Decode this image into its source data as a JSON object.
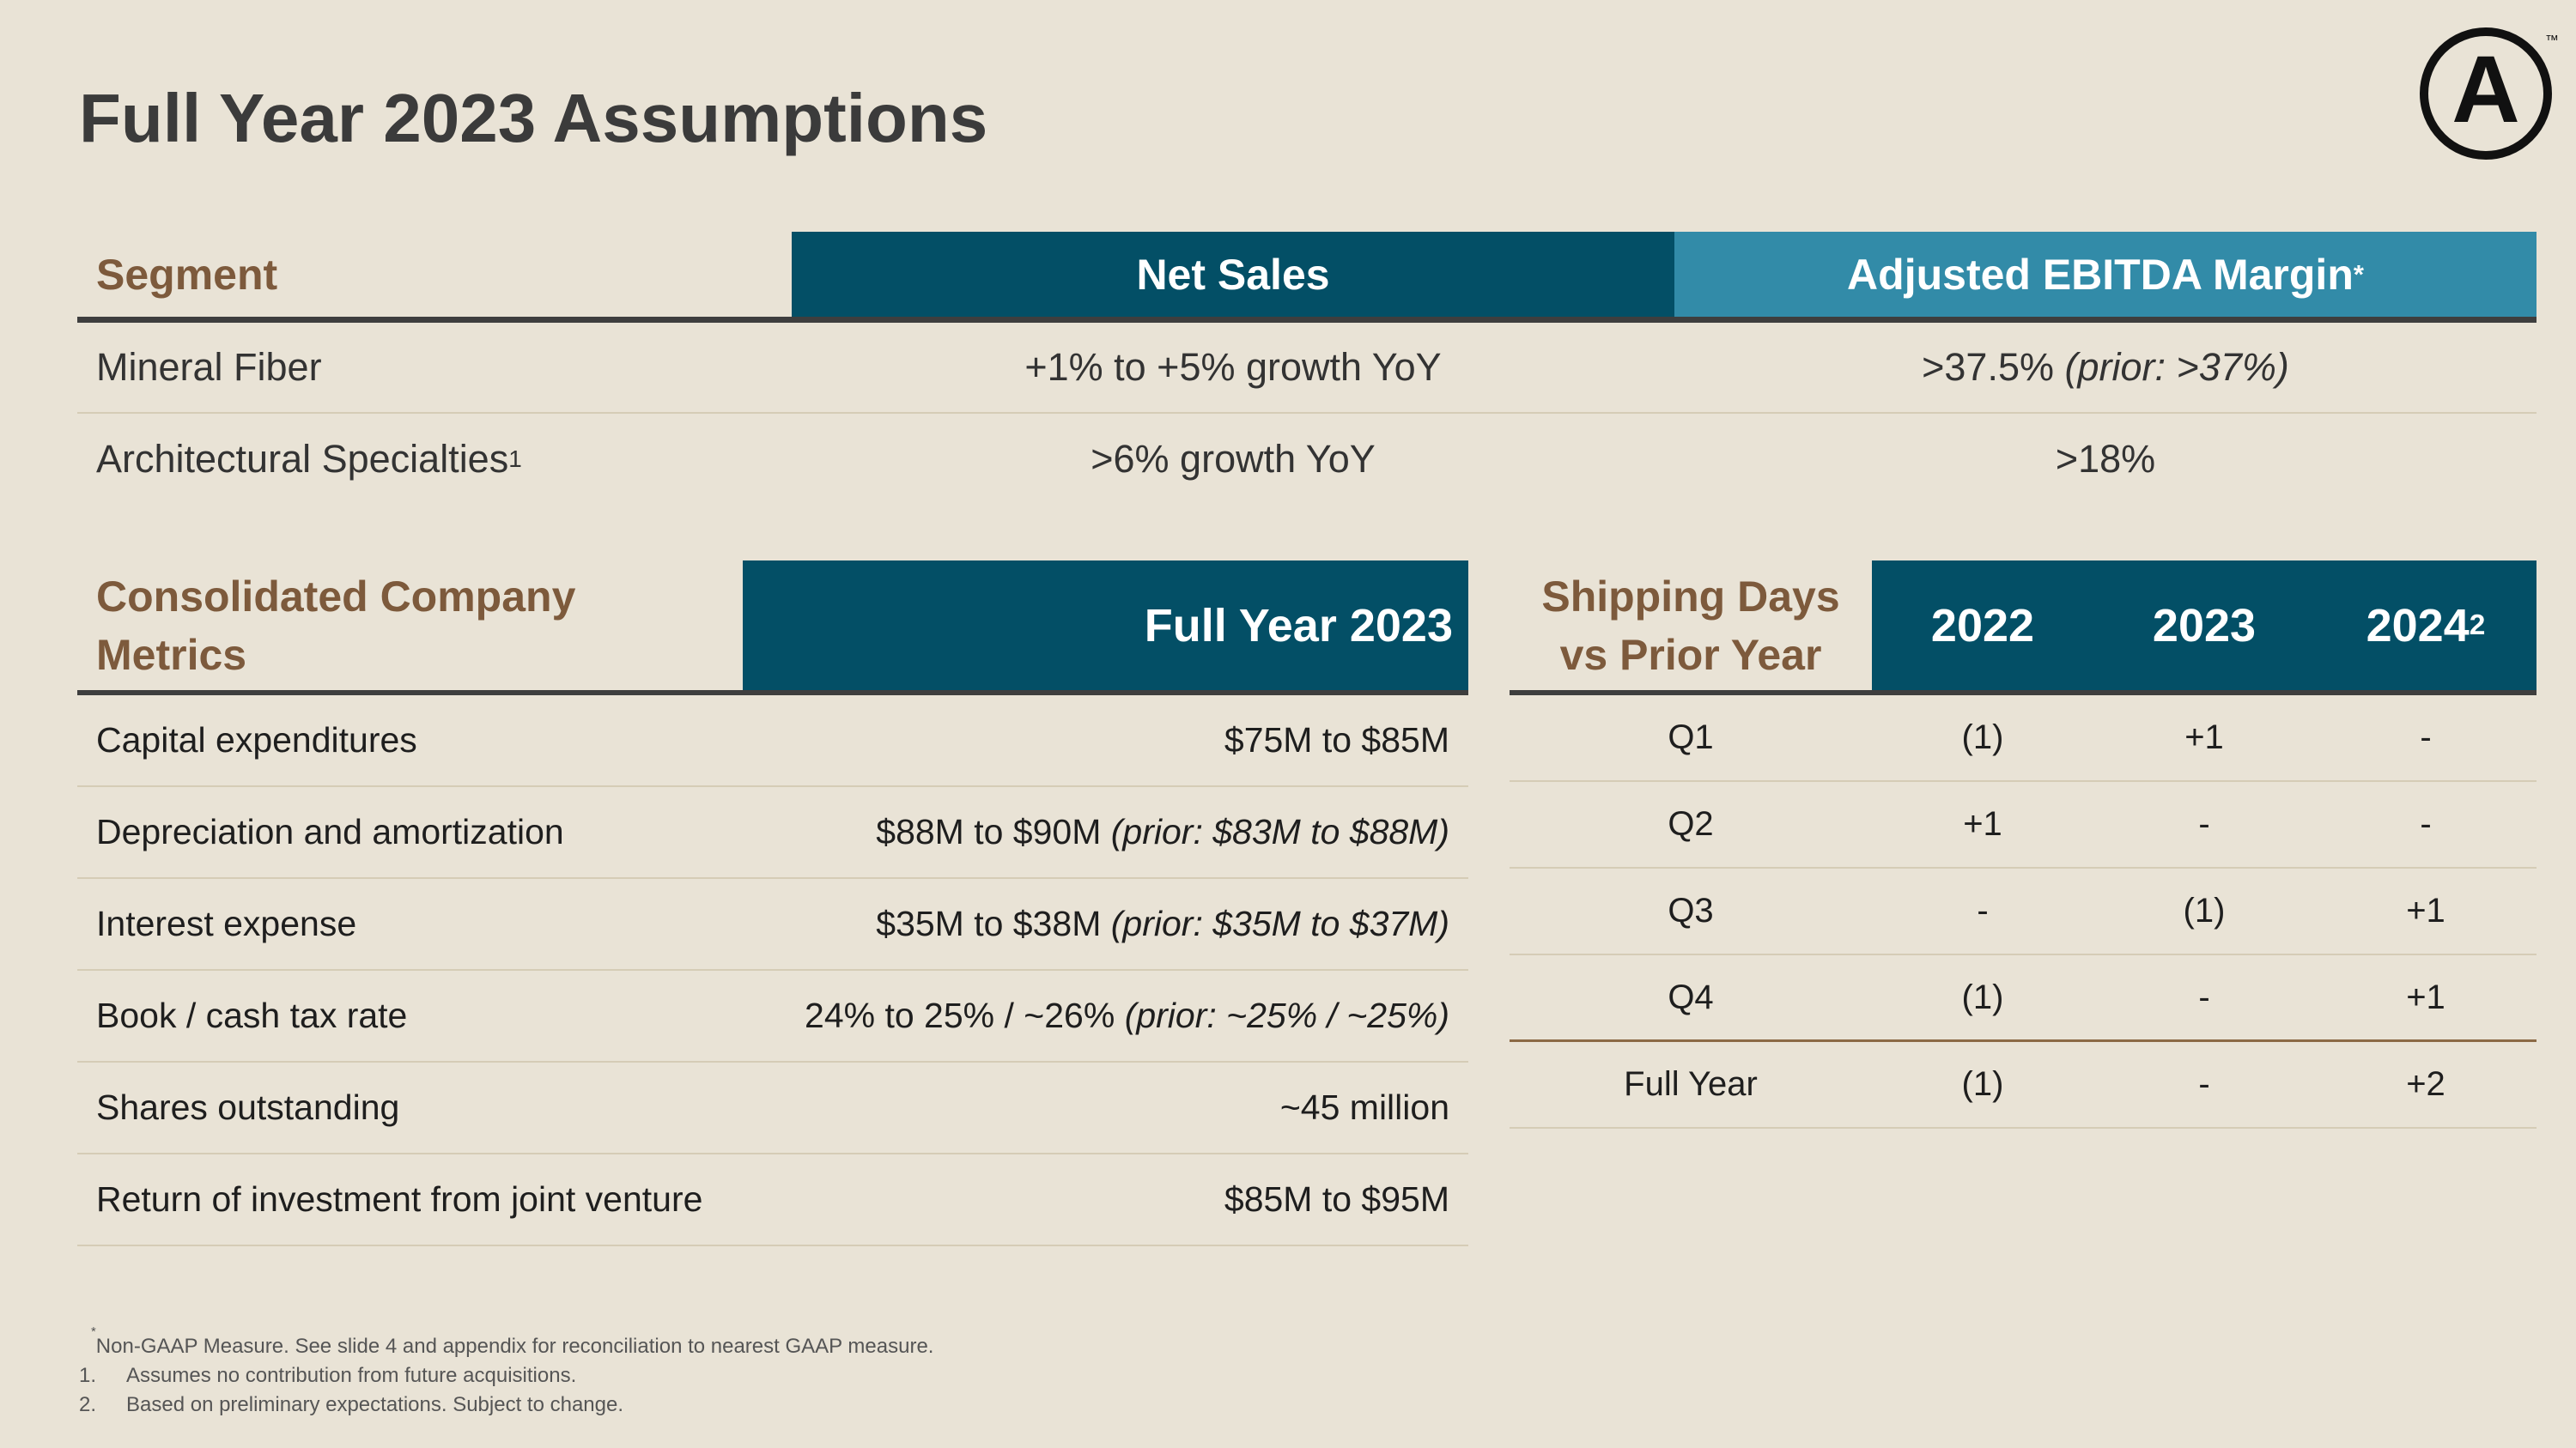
{
  "title": "Full Year 2023 Assumptions",
  "logo": {
    "letter": "A",
    "mark": "™"
  },
  "segment_table": {
    "headers": {
      "segment": "Segment",
      "net_sales": "Net Sales",
      "ebitda": "Adjusted EBITDA Margin",
      "ebitda_sup": "*"
    },
    "rows": [
      {
        "segment": "Mineral Fiber",
        "segment_sup": "",
        "net_sales": "+1% to +5% growth YoY",
        "ebitda": ">37.5%",
        "ebitda_prior": "(prior: >37%)"
      },
      {
        "segment": "Architectural Specialties",
        "segment_sup": "1",
        "net_sales": ">6% growth YoY",
        "ebitda": ">18%",
        "ebitda_prior": ""
      }
    ]
  },
  "consolidated_table": {
    "header_label_line1": "Consolidated Company",
    "header_label_line2": "Metrics",
    "header_value": "Full Year 2023",
    "rows": [
      {
        "metric": "Capital expenditures",
        "value": "$75M to $85M",
        "prior": ""
      },
      {
        "metric": "Depreciation and amortization",
        "value": "$88M to $90M",
        "prior": "(prior: $83M to $88M)"
      },
      {
        "metric": "Interest expense",
        "value": "$35M to $38M",
        "prior": "(prior: $35M to $37M)"
      },
      {
        "metric": "Book / cash tax rate",
        "value": "24% to 25% / ~26%",
        "prior": "(prior: ~25% / ~25%)"
      },
      {
        "metric": "Shares outstanding",
        "value": "~45 million",
        "prior": ""
      },
      {
        "metric": "Return of investment from joint venture",
        "value": "$85M to $95M",
        "prior": ""
      }
    ]
  },
  "shipping_table": {
    "header_line1": "Shipping Days",
    "header_line2": "vs Prior Year",
    "years": [
      {
        "label": "2022",
        "sup": ""
      },
      {
        "label": "2023",
        "sup": ""
      },
      {
        "label": "2024",
        "sup": "2"
      }
    ],
    "rows": [
      {
        "period": "Q1",
        "values": [
          "(1)",
          "+1",
          "-"
        ]
      },
      {
        "period": "Q2",
        "values": [
          "+1",
          "-",
          "-"
        ]
      },
      {
        "period": "Q3",
        "values": [
          "-",
          "(1)",
          "+1"
        ]
      },
      {
        "period": "Q4",
        "values": [
          "(1)",
          "-",
          "+1"
        ]
      },
      {
        "period": "Full Year",
        "values": [
          "(1)",
          "-",
          "+2"
        ]
      }
    ]
  },
  "footnotes": {
    "star_mark": "*",
    "star_text": "Non-GAAP Measure. See slide 4 and appendix for reconciliation to nearest GAAP measure.",
    "items": [
      {
        "num": "1.",
        "text": "Assumes no contribution from future acquisitions."
      },
      {
        "num": "2.",
        "text": "Based on preliminary expectations. Subject to change."
      }
    ]
  }
}
